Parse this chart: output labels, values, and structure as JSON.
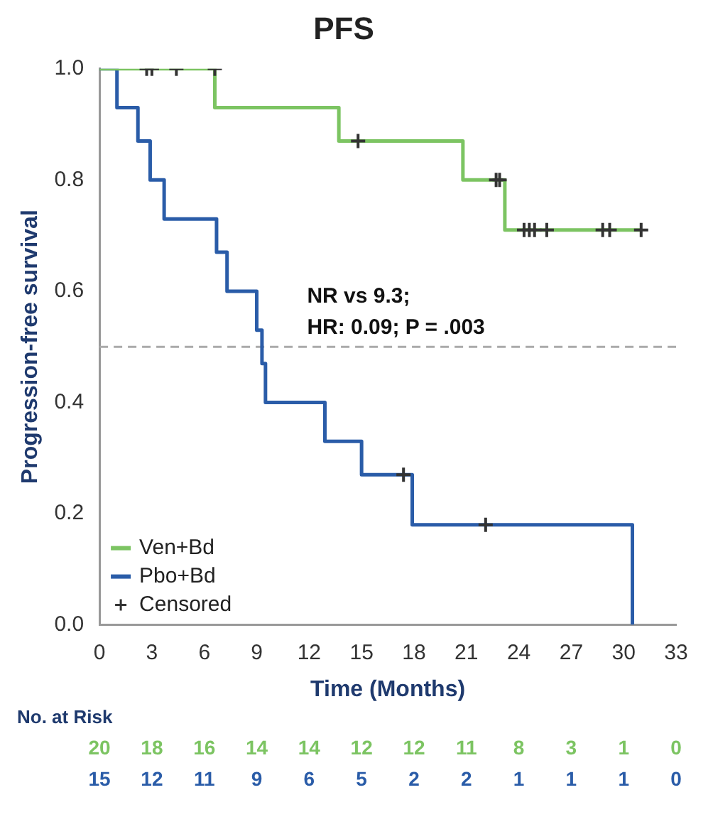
{
  "chart_data": {
    "type": "step",
    "title": "PFS",
    "xlabel": "Time (Months)",
    "ylabel": "Progression-free survival",
    "xlim": [
      0,
      33
    ],
    "xticks": [
      0,
      3,
      6,
      9,
      12,
      15,
      18,
      21,
      24,
      27,
      30,
      33
    ],
    "ylim": [
      0,
      1
    ],
    "yticks": [
      {
        "value": 0,
        "label": "0.0"
      },
      {
        "value": 0.2,
        "label": "0.2"
      },
      {
        "value": 0.4,
        "label": "0.4"
      },
      {
        "value": 0.6,
        "label": "0.6"
      },
      {
        "value": 0.8,
        "label": "0.8"
      },
      {
        "value": 1,
        "label": "1.0"
      }
    ],
    "grid": false,
    "legend": "bottom left",
    "series": [
      {
        "name": "Ven+Bd",
        "color": "#7cc462",
        "x": [
          0,
          6.6,
          13.7,
          20.8,
          23.2,
          31.0
        ],
        "values": [
          1,
          0.93,
          0.87,
          0.8,
          0.71,
          0.71
        ]
      },
      {
        "name": "Pbo+Bd",
        "color": "#2a5ca8",
        "x": [
          0,
          1.0,
          2.2,
          2.9,
          3.7,
          6.7,
          7.3,
          9.0,
          9.3,
          9.5,
          12.9,
          15.0,
          17.9,
          30.5
        ],
        "values": [
          1,
          0.93,
          0.87,
          0.8,
          0.73,
          0.67,
          0.6,
          0.53,
          0.47,
          0.4,
          0.33,
          0.27,
          0.18,
          0
        ]
      },
      {
        "name": "Censored",
        "type": "scatter",
        "marker": "cross",
        "color": "#333333",
        "x": [
          2.7,
          3.0,
          4.4,
          6.6,
          14.8,
          22.7,
          22.9,
          24.3,
          24.6,
          24.9,
          25.6,
          28.8,
          29.2,
          31.0,
          17.4,
          22.1
        ],
        "values": [
          1,
          1,
          1,
          1,
          0.87,
          0.8,
          0.8,
          0.71,
          0.71,
          0.71,
          0.71,
          0.71,
          0.71,
          0.71,
          0.27,
          0.18
        ]
      }
    ],
    "ref_lines": [
      {
        "axis": "y",
        "value": 0.5,
        "color": "#aaaaaa",
        "line_style": "dashed"
      }
    ],
    "annotations": [
      "NR vs 9.3;",
      "HR: 0.09; P = .003",
      "No. at Risk",
      "20 18 16 14 14 12 12 11 8 3 1 0",
      "15 12 11 9 6 5 2 2 1 1 1 0"
    ]
  }
}
